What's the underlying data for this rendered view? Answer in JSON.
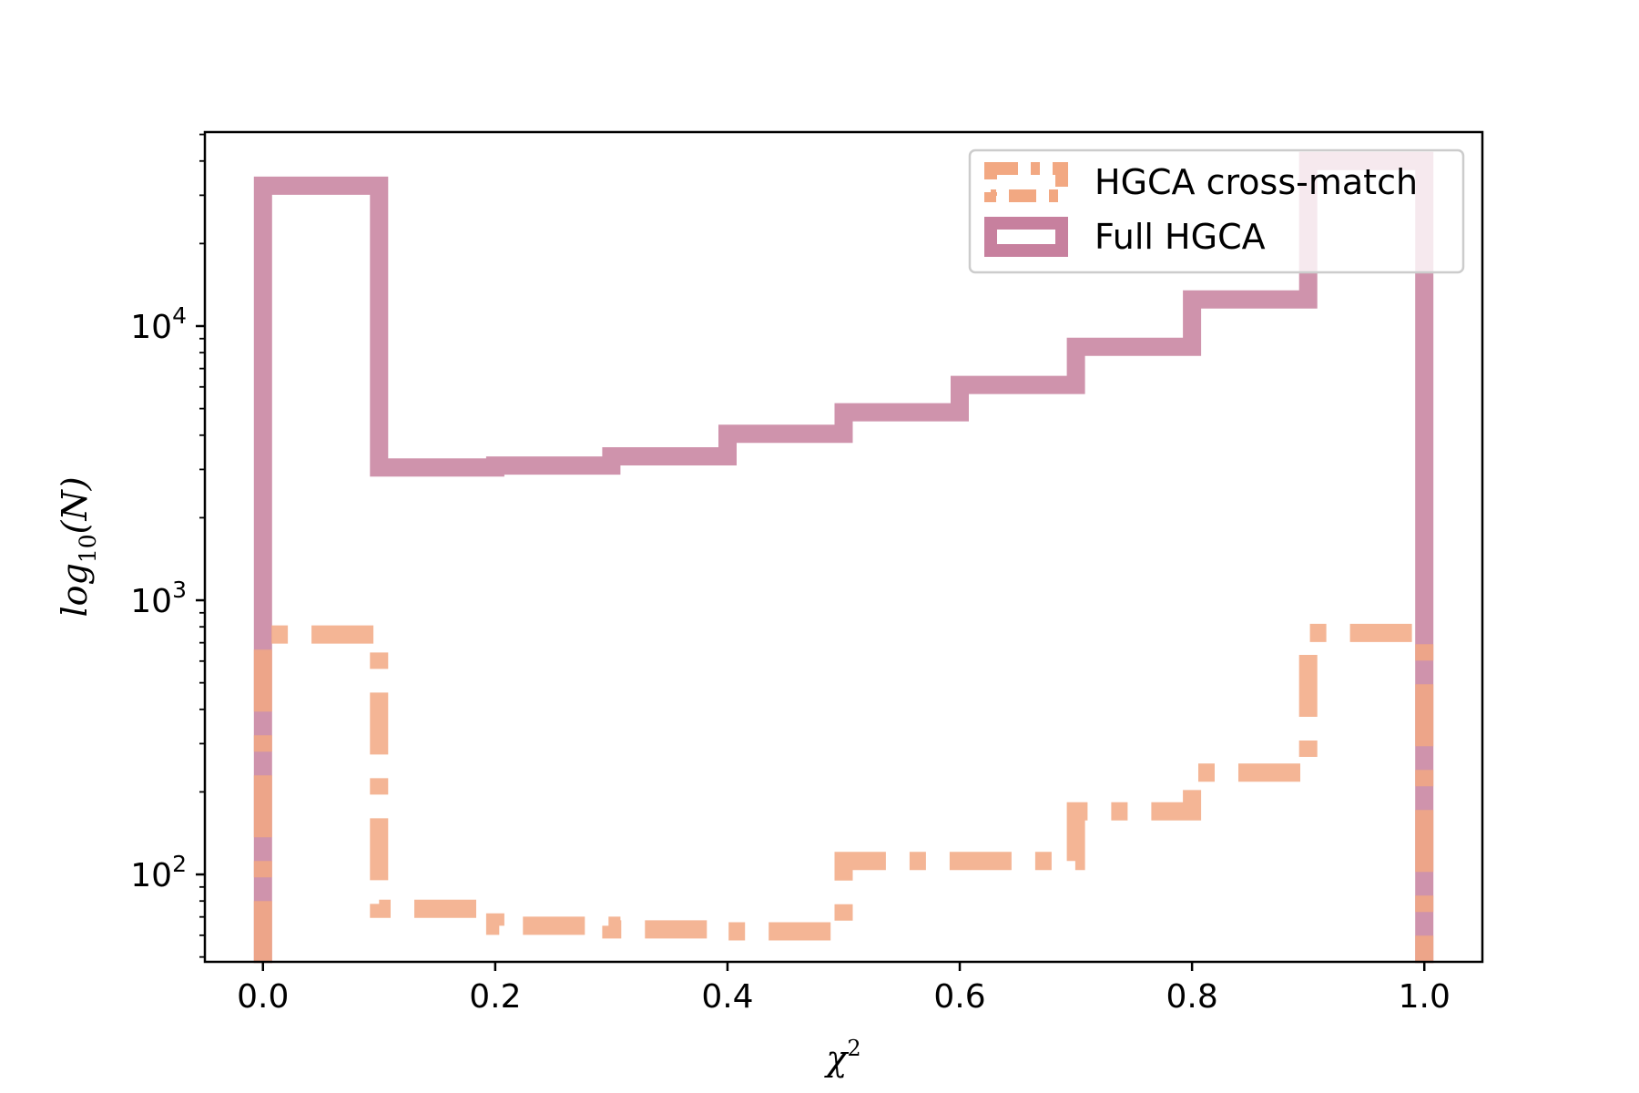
{
  "chart_data": {
    "type": "histogram",
    "title": "",
    "xlabel": "χ",
    "xlabel_sup": "2",
    "ylabel_main": "log",
    "ylabel_sub": "10",
    "ylabel_arg": "(N)",
    "xlim": [
      -0.05,
      1.05
    ],
    "ylim": [
      48,
      51000
    ],
    "yscale": "log",
    "grid": false,
    "legend_position": "top-right",
    "bin_edges": [
      0.0,
      0.1,
      0.2,
      0.3,
      0.4,
      0.5,
      0.6,
      0.7,
      0.8,
      0.9,
      1.0
    ],
    "x_ticks": [
      {
        "value": 0.0,
        "label": "0.0"
      },
      {
        "value": 0.2,
        "label": "0.2"
      },
      {
        "value": 0.4,
        "label": "0.4"
      },
      {
        "value": 0.6,
        "label": "0.6"
      },
      {
        "value": 0.8,
        "label": "0.8"
      },
      {
        "value": 1.0,
        "label": "1.0"
      }
    ],
    "y_ticks": [
      {
        "value": 100,
        "base": "10",
        "exp": "2"
      },
      {
        "value": 1000,
        "base": "10",
        "exp": "3"
      },
      {
        "value": 10000,
        "base": "10",
        "exp": "4"
      }
    ],
    "series": [
      {
        "name": "Full HGCA",
        "style": "solid",
        "color": "#c7809e",
        "values": [
          32500,
          3050,
          3100,
          3350,
          4050,
          4850,
          6100,
          8400,
          12500,
          40000
        ]
      },
      {
        "name": "HGCA cross-match",
        "style": "dashdot",
        "color": "#f2a882",
        "values": [
          750,
          75,
          65,
          63,
          62,
          112,
          112,
          170,
          235,
          760
        ]
      }
    ]
  }
}
